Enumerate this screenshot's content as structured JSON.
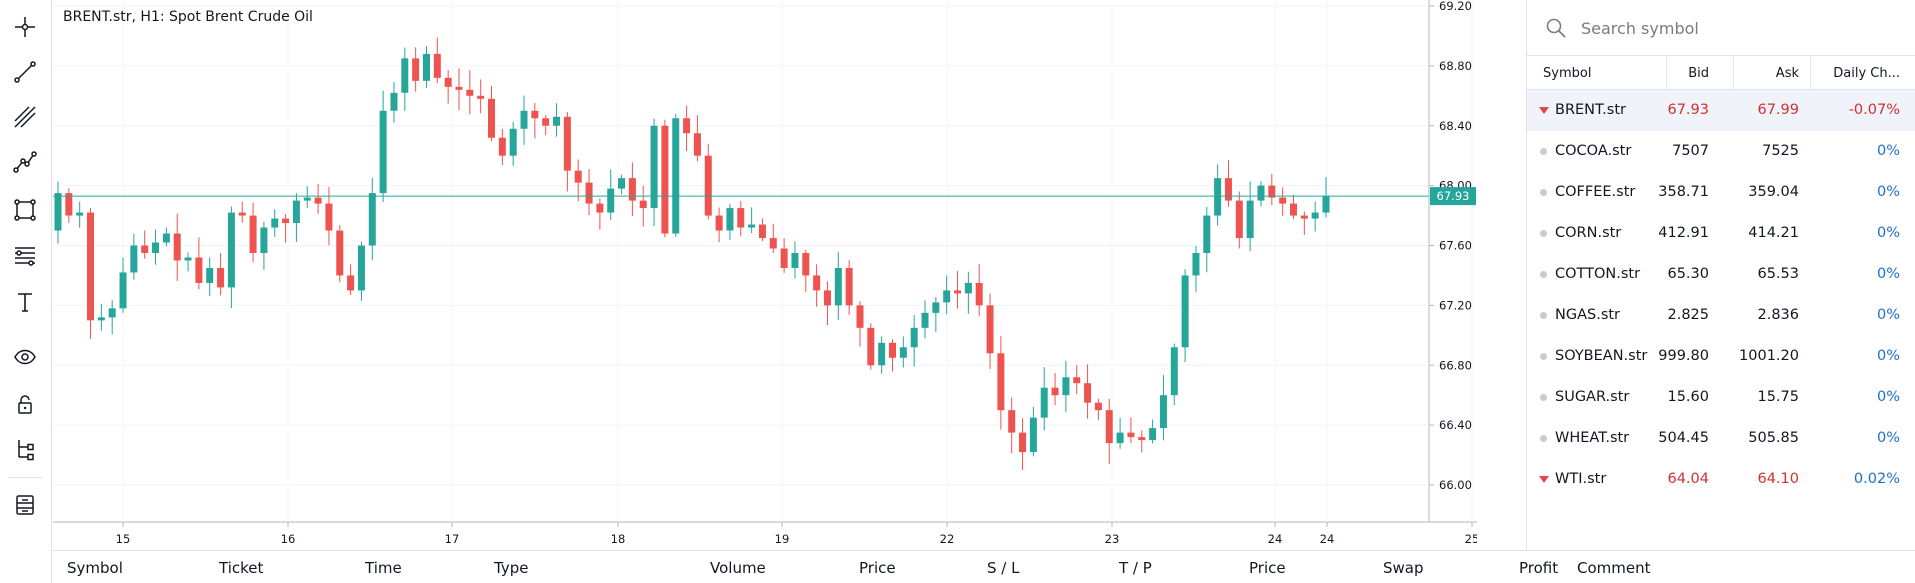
{
  "chart": {
    "title": "BRENT.str, H1: Spot Brent Crude Oil",
    "current_price_label": "67.93",
    "current_price": 67.93,
    "y_axis_labels": [
      "69.20",
      "68.80",
      "68.40",
      "68.00",
      "67.60",
      "67.20",
      "66.80",
      "66.40",
      "66.00"
    ],
    "x_axis_labels": [
      "15",
      "16",
      "17",
      "18",
      "19",
      "22",
      "23",
      "24",
      "24",
      "25"
    ],
    "up_color": "#26a69a",
    "down_color": "#ef5350"
  },
  "chart_data": {
    "type": "candlestick",
    "title": "BRENT.str, H1: Spot Brent Crude Oil",
    "ylim": [
      65.8,
      69.2
    ],
    "x_labels": [
      "15",
      "16",
      "17",
      "18",
      "19",
      "22",
      "23",
      "24",
      "24",
      "25"
    ],
    "closes": [
      67.95,
      67.8,
      67.82,
      67.1,
      67.12,
      67.18,
      67.42,
      67.6,
      67.55,
      67.62,
      67.68,
      67.5,
      67.52,
      67.35,
      67.45,
      67.32,
      67.82,
      67.8,
      67.55,
      67.72,
      67.78,
      67.75,
      67.9,
      67.92,
      67.88,
      67.7,
      67.4,
      67.3,
      67.6,
      67.95,
      68.5,
      68.62,
      68.85,
      68.7,
      68.88,
      68.72,
      68.66,
      68.64,
      68.6,
      68.58,
      68.32,
      68.2,
      68.38,
      68.5,
      68.45,
      68.4,
      68.46,
      68.1,
      68.02,
      67.88,
      67.82,
      67.98,
      68.05,
      67.9,
      67.85,
      68.4,
      67.68,
      68.45,
      68.35,
      68.2,
      67.8,
      67.7,
      67.85,
      67.72,
      67.74,
      67.65,
      67.58,
      67.45,
      67.55,
      67.4,
      67.3,
      67.2,
      67.45,
      67.2,
      67.05,
      66.8,
      66.95,
      66.85,
      66.92,
      67.05,
      67.15,
      67.22,
      67.3,
      67.28,
      67.35,
      67.2,
      66.88,
      66.5,
      66.35,
      66.22,
      66.45,
      66.65,
      66.6,
      66.72,
      66.68,
      66.55,
      66.5,
      66.28,
      66.35,
      66.32,
      66.3,
      66.38,
      66.6,
      66.92,
      67.4,
      67.55,
      67.8,
      68.05,
      67.9,
      67.65,
      67.9,
      68.0,
      67.92,
      67.88,
      67.8,
      67.78,
      67.82,
      67.93
    ]
  },
  "watchlist": {
    "search_placeholder": "Search symbol",
    "headers": {
      "symbol": "Symbol",
      "bid": "Bid",
      "ask": "Ask",
      "change": "Daily Ch..."
    },
    "rows": [
      {
        "symbol": "BRENT.str",
        "bid": "67.93",
        "ask": "67.99",
        "change": "-0.07%",
        "trend": "down"
      },
      {
        "symbol": "COCOA.str",
        "bid": "7507",
        "ask": "7525",
        "change": "0%",
        "trend": "flat"
      },
      {
        "symbol": "COFFEE.str",
        "bid": "358.71",
        "ask": "359.04",
        "change": "0%",
        "trend": "flat"
      },
      {
        "symbol": "CORN.str",
        "bid": "412.91",
        "ask": "414.21",
        "change": "0%",
        "trend": "flat"
      },
      {
        "symbol": "COTTON.str",
        "bid": "65.30",
        "ask": "65.53",
        "change": "0%",
        "trend": "flat"
      },
      {
        "symbol": "NGAS.str",
        "bid": "2.825",
        "ask": "2.836",
        "change": "0%",
        "trend": "flat"
      },
      {
        "symbol": "SOYBEAN.str",
        "bid": "999.80",
        "ask": "1001.20",
        "change": "0%",
        "trend": "flat"
      },
      {
        "symbol": "SUGAR.str",
        "bid": "15.60",
        "ask": "15.75",
        "change": "0%",
        "trend": "flat"
      },
      {
        "symbol": "WHEAT.str",
        "bid": "504.45",
        "ask": "505.85",
        "change": "0%",
        "trend": "flat"
      },
      {
        "symbol": "WTI.str",
        "bid": "64.04",
        "ask": "64.10",
        "change": "0.02%",
        "trend": "down"
      }
    ]
  },
  "positions": {
    "columns": [
      "Symbol",
      "Ticket",
      "Time",
      "Type",
      "Volume",
      "Price",
      "S / L",
      "T / P",
      "Price",
      "Swap",
      "Profit",
      "Comment"
    ]
  },
  "toolbar": {
    "tools": [
      "crosshair-icon",
      "trend-line-icon",
      "parallel-channel-icon",
      "polyline-icon",
      "rectangle-icon",
      "fib-levels-icon",
      "text-icon",
      "eye-icon",
      "lock-icon",
      "object-tree-icon",
      "layers-icon"
    ]
  }
}
